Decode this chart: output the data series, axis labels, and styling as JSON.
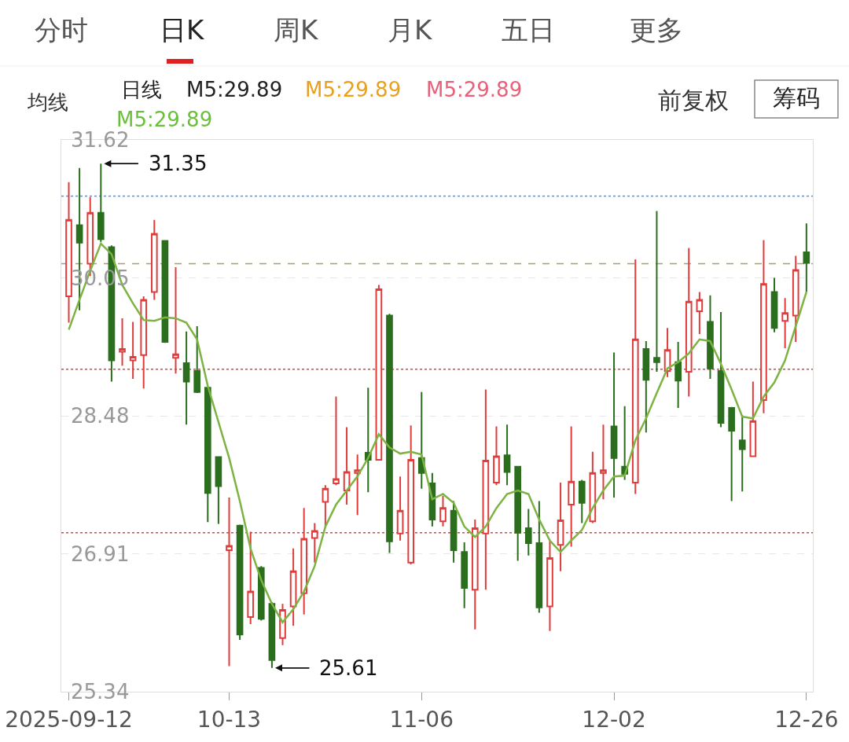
{
  "chart_data": {
    "type": "candlestick",
    "categories": [
      "2025-09-12",
      null,
      null,
      null,
      null,
      null,
      null,
      null,
      null,
      null,
      null,
      null,
      null,
      null,
      null,
      "10-13",
      null,
      null,
      null,
      null,
      null,
      null,
      null,
      null,
      null,
      null,
      null,
      null,
      null,
      null,
      null,
      null,
      null,
      "11-06",
      null,
      null,
      null,
      null,
      null,
      null,
      null,
      null,
      null,
      null,
      null,
      null,
      null,
      null,
      null,
      null,
      null,
      "12-02",
      null,
      null,
      null,
      null,
      null,
      null,
      null,
      null,
      null,
      null,
      null,
      null,
      null,
      null,
      null,
      null,
      null,
      "12-26"
    ],
    "series": [
      {
        "type": "candlestick",
        "ohlc": [
          [
            29.84,
            31.14,
            29.54,
            30.71
          ],
          [
            30.65,
            31.3,
            29.68,
            30.45
          ],
          [
            30.21,
            30.97,
            30.07,
            30.79
          ],
          [
            30.79,
            31.35,
            30.46,
            30.49
          ],
          [
            30.4,
            30.42,
            28.87,
            29.11
          ],
          [
            29.21,
            29.59,
            29.05,
            29.24
          ],
          [
            29.11,
            29.55,
            28.9,
            29.15
          ],
          [
            29.17,
            29.84,
            28.79,
            29.8
          ],
          [
            29.89,
            30.71,
            29.8,
            30.55
          ],
          [
            30.47,
            30.48,
            29.31,
            29.32
          ],
          [
            29.14,
            30.17,
            28.96,
            29.18
          ],
          [
            29.08,
            29.44,
            28.38,
            28.87
          ],
          [
            28.99,
            29.5,
            28.74,
            28.75
          ],
          [
            28.8,
            28.8,
            27.27,
            27.6
          ],
          [
            28.01,
            28.02,
            27.25,
            27.68
          ],
          [
            26.95,
            27.55,
            25.63,
            27.0
          ],
          [
            27.23,
            27.24,
            25.93,
            25.99
          ],
          [
            26.19,
            27.16,
            26.11,
            26.48
          ],
          [
            26.75,
            26.77,
            26.15,
            26.17
          ],
          [
            26.34,
            26.36,
            25.61,
            25.7
          ],
          [
            25.95,
            26.34,
            25.87,
            26.27
          ],
          [
            26.31,
            26.97,
            26.09,
            26.71
          ],
          [
            26.46,
            27.43,
            26.22,
            27.08
          ],
          [
            27.09,
            27.26,
            26.81,
            27.17
          ],
          [
            27.5,
            27.69,
            27.22,
            27.65
          ],
          [
            27.71,
            28.7,
            27.69,
            27.76
          ],
          [
            27.63,
            28.35,
            27.47,
            27.84
          ],
          [
            27.83,
            28.04,
            27.35,
            27.86
          ],
          [
            28.06,
            28.8,
            27.61,
            27.98
          ],
          [
            27.98,
            29.97,
            27.98,
            29.92
          ],
          [
            29.62,
            29.64,
            26.92,
            27.05
          ],
          [
            27.14,
            27.79,
            27.06,
            27.4
          ],
          [
            26.81,
            28.37,
            26.79,
            27.98
          ],
          [
            28.0,
            28.75,
            27.65,
            27.83
          ],
          [
            27.71,
            27.83,
            27.22,
            27.3
          ],
          [
            27.28,
            27.57,
            27.22,
            27.43
          ],
          [
            27.4,
            27.51,
            26.81,
            26.95
          ],
          [
            26.93,
            27.04,
            26.29,
            26.52
          ],
          [
            26.5,
            27.3,
            26.05,
            27.2
          ],
          [
            27.14,
            28.78,
            26.5,
            27.97
          ],
          [
            27.72,
            28.36,
            27.69,
            28.02
          ],
          [
            28.03,
            28.38,
            27.69,
            27.84
          ],
          [
            27.9,
            27.9,
            26.83,
            27.15
          ],
          [
            27.2,
            27.42,
            26.89,
            27.03
          ],
          [
            27.03,
            27.51,
            26.24,
            26.3
          ],
          [
            26.31,
            27.06,
            26.03,
            26.86
          ],
          [
            27.01,
            27.72,
            26.71,
            27.29
          ],
          [
            27.47,
            28.36,
            26.99,
            27.73
          ],
          [
            27.73,
            27.75,
            27.26,
            27.49
          ],
          [
            27.28,
            28.07,
            27.26,
            27.83
          ],
          [
            27.83,
            28.38,
            27.53,
            27.86
          ],
          [
            28.36,
            29.2,
            27.55,
            28.0
          ],
          [
            27.9,
            28.59,
            27.75,
            27.82
          ],
          [
            27.72,
            30.26,
            27.59,
            29.35
          ],
          [
            29.24,
            29.33,
            28.29,
            28.89
          ],
          [
            29.14,
            30.81,
            28.98,
            29.09
          ],
          [
            28.99,
            29.48,
            28.92,
            29.23
          ],
          [
            29.09,
            29.32,
            28.57,
            28.88
          ],
          [
            28.98,
            30.39,
            28.7,
            29.78
          ],
          [
            29.67,
            29.89,
            29.41,
            29.8
          ],
          [
            29.55,
            29.85,
            28.9,
            29.02
          ],
          [
            28.99,
            29.66,
            28.35,
            28.4
          ],
          [
            28.57,
            28.58,
            27.51,
            28.31
          ],
          [
            28.2,
            28.49,
            27.62,
            28.1
          ],
          [
            28.02,
            28.87,
            28.02,
            28.42
          ],
          [
            28.66,
            30.48,
            28.51,
            29.98
          ],
          [
            29.89,
            30.05,
            29.43,
            29.48
          ],
          [
            29.56,
            29.82,
            29.25,
            29.65
          ],
          [
            29.62,
            30.3,
            29.32,
            30.14
          ],
          [
            30.34,
            30.67,
            29.89,
            30.22
          ]
        ],
        "colors": [
          "#e03c3c",
          "#2a6e1e",
          "#e03c3c",
          "#2a6e1e",
          "#2a6e1e",
          "#e03c3c",
          "#e03c3c",
          "#e03c3c",
          "#e03c3c",
          "#2a6e1e",
          "#e03c3c",
          "#2a6e1e",
          "#2a6e1e",
          "#2a6e1e",
          "#2a6e1e",
          "#e03c3c",
          "#2a6e1e",
          "#e03c3c",
          "#2a6e1e",
          "#2a6e1e",
          "#e03c3c",
          "#e03c3c",
          "#e03c3c",
          "#e03c3c",
          "#e03c3c",
          "#e03c3c",
          "#e03c3c",
          "#e03c3c",
          "#2a6e1e",
          "#e03c3c",
          "#2a6e1e",
          "#e03c3c",
          "#e03c3c",
          "#2a6e1e",
          "#2a6e1e",
          "#e03c3c",
          "#2a6e1e",
          "#2a6e1e",
          "#e03c3c",
          "#e03c3c",
          "#e03c3c",
          "#2a6e1e",
          "#2a6e1e",
          "#2a6e1e",
          "#2a6e1e",
          "#e03c3c",
          "#e03c3c",
          "#e03c3c",
          "#2a6e1e",
          "#e03c3c",
          "#e03c3c",
          "#2a6e1e",
          "#2a6e1e",
          "#e03c3c",
          "#2a6e1e",
          "#2a6e1e",
          "#e03c3c",
          "#2a6e1e",
          "#e03c3c",
          "#e03c3c",
          "#2a6e1e",
          "#2a6e1e",
          "#2a6e1e",
          "#2a6e1e",
          "#e03c3c",
          "#e03c3c",
          "#2a6e1e",
          "#e03c3c",
          "#e03c3c",
          "#2a6e1e"
        ]
      },
      {
        "type": "line",
        "color": "#7cb342",
        "values": [
          29.46,
          29.8,
          30.13,
          30.44,
          30.32,
          29.97,
          29.76,
          29.57,
          29.56,
          29.6,
          29.59,
          29.54,
          29.35,
          28.82,
          28.41,
          28.0,
          27.51,
          26.97,
          26.61,
          26.34,
          26.13,
          26.28,
          26.48,
          26.77,
          27.22,
          27.47,
          27.63,
          27.79,
          28.0,
          28.27,
          28.12,
          28.05,
          28.07,
          28.04,
          27.53,
          27.59,
          27.49,
          27.22,
          27.1,
          27.22,
          27.43,
          27.59,
          27.63,
          27.59,
          27.3,
          27.06,
          26.93,
          27.06,
          27.18,
          27.43,
          27.63,
          27.79,
          27.8,
          28.2,
          28.45,
          28.74,
          29.02,
          29.09,
          29.19,
          29.35,
          29.33,
          29.07,
          28.78,
          28.47,
          28.45,
          28.7,
          28.86,
          29.11,
          29.5,
          29.89
        ]
      }
    ],
    "ylim": [
      25.34,
      31.62
    ],
    "yticks": [
      31.62,
      30.05,
      28.48,
      26.91,
      25.34
    ],
    "grid": "y",
    "ref_lines": [
      {
        "axis": "y",
        "value": 30.98,
        "color": "#5b8ee0",
        "line_style": "dotted"
      },
      {
        "axis": "y",
        "value": 30.21,
        "color": "#b59a6a",
        "line_style": "dashed"
      },
      {
        "axis": "y",
        "value": 29.01,
        "color": "#c0504d",
        "line_style": "dotted"
      },
      {
        "axis": "y",
        "value": 27.15,
        "color": "#c0504d",
        "line_style": "dotted"
      }
    ],
    "annotations": [
      "31.35",
      "25.61",
      "分时",
      "日K",
      "周K",
      "月K",
      "五日",
      "更多",
      "均线",
      "日线",
      "M5:29.89",
      "M5:29.89",
      "M5:29.89",
      "M5:29.89",
      "前复权",
      "筹码"
    ]
  }
}
